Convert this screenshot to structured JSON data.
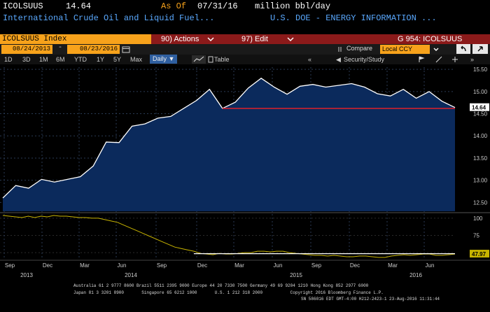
{
  "header": {
    "ticker": "ICOLSUUS",
    "last_value": "14.64",
    "as_of_label": "As Of",
    "as_of_date": "07/31/16",
    "units": "million bbl/day",
    "description": "International Crude Oil and Liquid Fuel...",
    "source": "U.S. DOE - ENERGY INFORMATION ..."
  },
  "menu_bar": {
    "index_label": "ICOLSUUS Index",
    "actions_label": "90) Actions",
    "edit_label": "97) Edit",
    "page_label": "G 954: ICOLSUUS"
  },
  "controls": {
    "start_date": "08/24/2013",
    "end_date": "08/23/2016",
    "compare_label": "Compare",
    "currency": "Local CCY"
  },
  "range_tabs": [
    "1D",
    "3D",
    "1M",
    "6M",
    "YTD",
    "1Y",
    "5Y",
    "Max"
  ],
  "frequency": "Daily",
  "table_label": "Table",
  "security_study_label": "Security/Study",
  "chart_data": [
    {
      "type": "area",
      "title": "",
      "x": [
        "2013-08",
        "2013-09",
        "2013-10",
        "2013-11",
        "2013-12",
        "2014-01",
        "2014-02",
        "2014-03",
        "2014-04",
        "2014-05",
        "2014-06",
        "2014-07",
        "2014-08",
        "2014-09",
        "2014-10",
        "2014-11",
        "2014-12",
        "2015-01",
        "2015-02",
        "2015-03",
        "2015-04",
        "2015-05",
        "2015-06",
        "2015-07",
        "2015-08",
        "2015-09",
        "2015-10",
        "2015-11",
        "2015-12",
        "2016-01",
        "2016-02",
        "2016-03",
        "2016-04",
        "2016-05",
        "2016-06",
        "2016-07"
      ],
      "values": [
        12.6,
        12.88,
        12.82,
        13.02,
        12.96,
        13.02,
        13.08,
        13.32,
        13.86,
        13.85,
        14.22,
        14.27,
        14.4,
        14.44,
        14.62,
        14.8,
        15.05,
        14.62,
        14.76,
        15.08,
        15.3,
        15.1,
        14.94,
        15.12,
        15.16,
        15.1,
        15.14,
        15.18,
        15.1,
        14.95,
        14.9,
        15.05,
        14.85,
        15.0,
        14.78,
        14.64
      ],
      "ylim": [
        12.3,
        15.55
      ],
      "y_ticks": [
        "15.50",
        "15.00",
        "14.50",
        "14.00",
        "13.50",
        "13.00",
        "12.50"
      ],
      "last_label": "14.64",
      "reference_line": 14.62,
      "line_color": "#ffffff",
      "fill_color": "#0b2a5c",
      "reference_color": "#e0202a"
    },
    {
      "type": "line",
      "title": "",
      "ylim": [
        43,
        104
      ],
      "y_ticks": [
        "100",
        "75",
        "50"
      ],
      "last_label": "47.97",
      "reference_line": 48.5,
      "line_color": "#c8b400",
      "reference_color": "#ffffff",
      "values": [
        104,
        103,
        102,
        101,
        103,
        101,
        103,
        102,
        104,
        103,
        103,
        102,
        101,
        101,
        100,
        100,
        98,
        96,
        94,
        90,
        86,
        82,
        78,
        74,
        70,
        66,
        62,
        58,
        56,
        54,
        52,
        49,
        48,
        47,
        49,
        48,
        48,
        49,
        50,
        50,
        52,
        52,
        51,
        52,
        52,
        50,
        49,
        48,
        47,
        46,
        46,
        45,
        46,
        45,
        44,
        44,
        45,
        45,
        44,
        43,
        43,
        45,
        46,
        47,
        46,
        47,
        48,
        48,
        46,
        46,
        47,
        48
      ]
    }
  ],
  "x_axis": {
    "months": [
      "Sep",
      "Dec",
      "Mar",
      "Jun",
      "Sep",
      "Dec",
      "Mar",
      "Jun",
      "Sep",
      "Dec",
      "Mar",
      "Jun"
    ],
    "years": [
      "2013",
      "2014",
      "2015",
      "2016"
    ]
  },
  "footer": {
    "line1": "Australia 61 2 9777 8600 Brazil 5511 2395 9000 Europe 44 20 7330 7500 Germany 49 69 9204 1210 Hong Kong 852 2977 6000",
    "line2": "Japan 81 3 3201 8900       Singapore 65 6212 1000       U.S. 1 212 318 2000           Copyright 2016 Bloomberg Finance L.P.",
    "line3": "SN 586016 EDT  GMT-4:00 H212-2423-1 23-Aug-2016 11:31:44"
  },
  "colors": {
    "accent_orange": "#f7a21b",
    "menu_red": "#8b1a1a",
    "link_blue": "#5aa9ff"
  }
}
